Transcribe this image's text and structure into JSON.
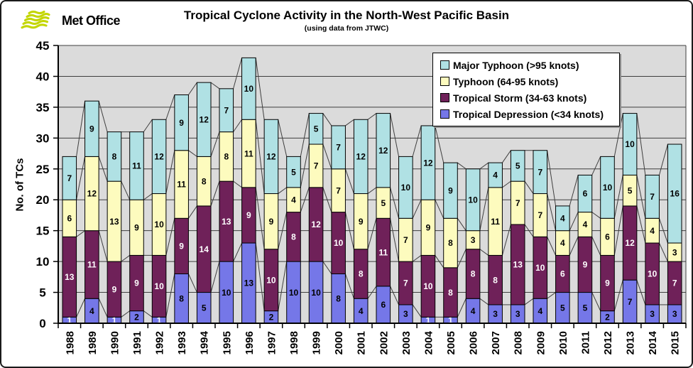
{
  "header": {
    "logo_text": "Met Office",
    "title": "Tropical Cyclone Activity in the North-West Pacific Basin",
    "subtitle": "(using data from JTWC)"
  },
  "logo_color": "#c3d600",
  "chart_data": {
    "type": "bar",
    "stacked": true,
    "title": "Tropical Cyclone Activity in the North-West Pacific Basin",
    "subtitle": "(using data from JTWC)",
    "xlabel": "",
    "ylabel": "No. of TCs",
    "ylim": [
      0,
      45
    ],
    "yticks": [
      0,
      5,
      10,
      15,
      20,
      25,
      30,
      35,
      40,
      45
    ],
    "grid": true,
    "plot_background": "#dbdbdb",
    "gridline_color": "#3f3f3f",
    "series_line_color": "#3f3f3f",
    "legend_position": "top-right",
    "categories": [
      "1988",
      "1989",
      "1990",
      "1991",
      "1992",
      "1993",
      "1994",
      "1995",
      "1996",
      "1997",
      "1998",
      "1999",
      "2000",
      "2001",
      "2002",
      "2003",
      "2004",
      "2005",
      "2006",
      "2007",
      "2008",
      "2009",
      "2010",
      "2011",
      "2012",
      "2013",
      "2014",
      "2015"
    ],
    "series": [
      {
        "name": "Tropical Depression (<34 knots)",
        "color": "#7577e8",
        "label_color": "#000000",
        "values": [
          1,
          4,
          1,
          2,
          1,
          8,
          5,
          10,
          13,
          2,
          10,
          10,
          8,
          4,
          6,
          3,
          1,
          1,
          4,
          3,
          3,
          4,
          5,
          5,
          2,
          7,
          3,
          3
        ]
      },
      {
        "name": "Tropical Storm (34-63 knots)",
        "color": "#6f2159",
        "label_color": "#ffffff",
        "values": [
          13,
          11,
          9,
          9,
          10,
          9,
          14,
          13,
          9,
          10,
          8,
          12,
          10,
          8,
          11,
          7,
          10,
          8,
          8,
          8,
          13,
          10,
          6,
          9,
          9,
          12,
          10,
          7
        ]
      },
      {
        "name": "Typhoon (64-95 knots)",
        "color": "#fdfbbe",
        "label_color": "#000000",
        "values": [
          6,
          12,
          13,
          9,
          10,
          11,
          8,
          8,
          11,
          9,
          4,
          7,
          7,
          9,
          5,
          7,
          9,
          8,
          3,
          11,
          7,
          7,
          4,
          4,
          6,
          5,
          4,
          3
        ]
      },
      {
        "name": "Major Typhoon (>95 knots)",
        "color": "#b0e1e4",
        "label_color": "#000000",
        "values": [
          7,
          9,
          8,
          11,
          12,
          9,
          12,
          7,
          10,
          12,
          5,
          5,
          7,
          12,
          12,
          10,
          12,
          9,
          10,
          4,
          5,
          7,
          4,
          6,
          10,
          10,
          7,
          16
        ]
      }
    ],
    "totals": [
      27,
      36,
      31,
      31,
      33,
      37,
      39,
      38,
      43,
      33,
      27,
      34,
      32,
      33,
      34,
      27,
      32,
      26,
      25,
      26,
      28,
      28,
      19,
      24,
      27,
      34,
      24,
      29
    ],
    "legend_order_top_to_bottom": [
      3,
      2,
      1,
      0
    ]
  }
}
